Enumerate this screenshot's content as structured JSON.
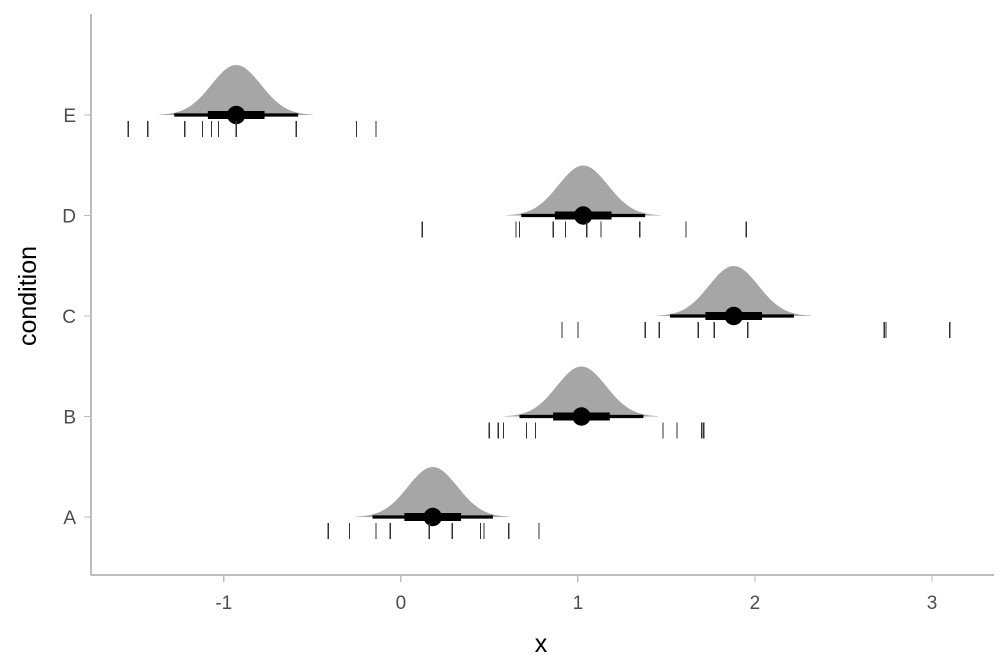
{
  "chart_data": {
    "type": "halfeye",
    "title": "",
    "xlabel": "x",
    "ylabel": "condition",
    "xlim": [
      -1.75,
      3.35
    ],
    "xticks": [
      -1,
      0,
      1,
      2,
      3
    ],
    "xtick_labels": [
      "-1",
      "0",
      "1",
      "2",
      "3"
    ],
    "categories": [
      "A",
      "B",
      "C",
      "D",
      "E"
    ],
    "grid": false,
    "legend": "none",
    "colors": {
      "density": "#a6a6a6",
      "interval": "#000000",
      "point": "#000000",
      "rug": "#333333",
      "axis": "#bdbdbd",
      "tick_text": "#4d4d4d"
    },
    "series": [
      {
        "category": "A",
        "center": 0.18,
        "sd": 0.14,
        "median": 0.18,
        "interval_66": [
          0.02,
          0.34
        ],
        "interval_95": [
          -0.16,
          0.52
        ],
        "observations": [
          -0.41,
          -0.29,
          -0.14,
          -0.06,
          0.16,
          0.29,
          0.45,
          0.47,
          0.61,
          0.78
        ]
      },
      {
        "category": "B",
        "center": 1.02,
        "sd": 0.14,
        "median": 1.02,
        "interval_66": [
          0.86,
          1.18
        ],
        "interval_95": [
          0.67,
          1.37
        ],
        "observations": [
          0.5,
          0.55,
          0.58,
          0.71,
          0.76,
          1.48,
          1.56,
          1.7,
          1.71
        ]
      },
      {
        "category": "C",
        "center": 1.88,
        "sd": 0.14,
        "median": 1.88,
        "interval_66": [
          1.72,
          2.04
        ],
        "interval_95": [
          1.52,
          2.22
        ],
        "observations": [
          0.91,
          1.0,
          1.38,
          1.46,
          1.68,
          1.77,
          1.96,
          2.73,
          2.74,
          3.1
        ]
      },
      {
        "category": "D",
        "center": 1.03,
        "sd": 0.14,
        "median": 1.03,
        "interval_66": [
          0.87,
          1.19
        ],
        "interval_95": [
          0.68,
          1.38
        ],
        "observations": [
          0.12,
          0.65,
          0.67,
          0.86,
          0.93,
          1.05,
          1.13,
          1.35,
          1.61,
          1.95
        ]
      },
      {
        "category": "E",
        "center": -0.93,
        "sd": 0.14,
        "median": -0.93,
        "interval_66": [
          -1.09,
          -0.77
        ],
        "interval_95": [
          -1.28,
          -0.58
        ],
        "observations": [
          -1.54,
          -1.43,
          -1.22,
          -1.12,
          -1.07,
          -1.03,
          -0.93,
          -0.59,
          -0.25,
          -0.14
        ]
      }
    ]
  }
}
